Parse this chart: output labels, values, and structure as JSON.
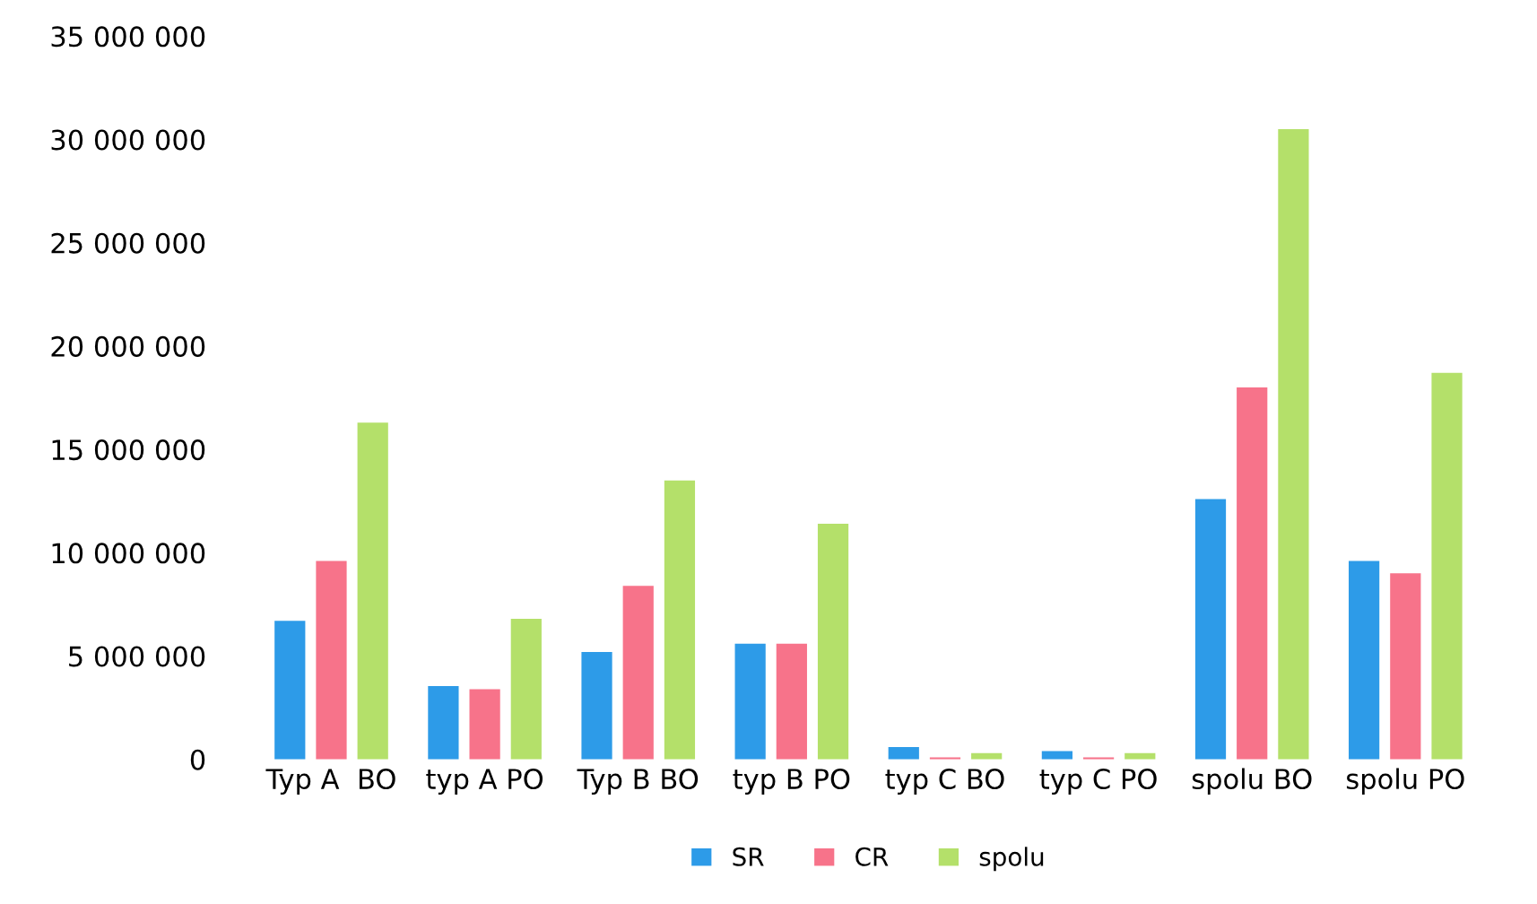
{
  "chart_data": {
    "type": "bar",
    "categories": [
      "Typ A  BO",
      "typ A PO",
      "Typ B BO",
      "typ B PO",
      "typ C BO",
      "typ C PO",
      "spolu BO",
      "spolu PO"
    ],
    "series": [
      {
        "name": "SR",
        "color": "#2d9be8",
        "values": [
          6700000,
          3550000,
          5200000,
          5600000,
          600000,
          400000,
          12600000,
          9600000
        ]
      },
      {
        "name": "CR",
        "color": "#f7738a",
        "values": [
          9600000,
          3400000,
          8400000,
          5600000,
          100000,
          100000,
          18000000,
          9000000
        ]
      },
      {
        "name": "spolu",
        "color": "#b4e06a",
        "values": [
          16300000,
          6800000,
          13500000,
          11400000,
          300000,
          300000,
          30500000,
          18700000
        ]
      }
    ],
    "ylim": [
      0,
      35000000
    ],
    "yticks": [
      {
        "value": 0,
        "label": "0"
      },
      {
        "value": 5000000,
        "label": "5 000 000"
      },
      {
        "value": 10000000,
        "label": "10 000 000"
      },
      {
        "value": 15000000,
        "label": "15 000 000"
      },
      {
        "value": 20000000,
        "label": "20 000 000"
      },
      {
        "value": 25000000,
        "label": "25 000 000"
      },
      {
        "value": 30000000,
        "label": "30 000 000"
      },
      {
        "value": 35000000,
        "label": "35 000 000"
      }
    ],
    "grid": false,
    "legend": "bottom"
  }
}
